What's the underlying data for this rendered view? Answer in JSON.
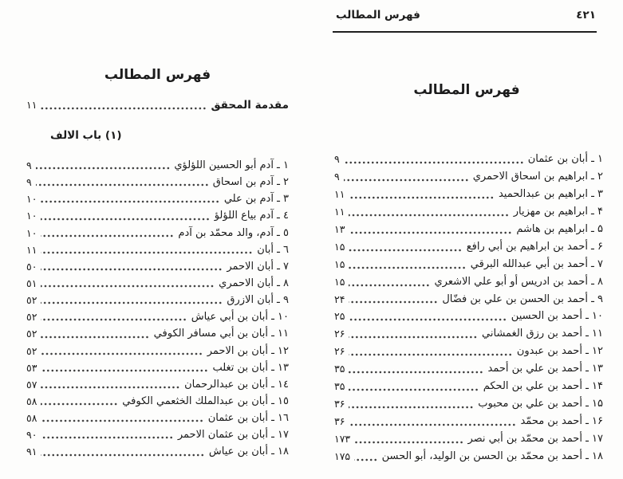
{
  "running_head": {
    "title": "فهرس المطالب",
    "page_number": "٤٢١"
  },
  "left_page": {
    "title": "فهرس المطالب",
    "intro": {
      "label": "مقدمة المحقق",
      "page": "١١"
    },
    "section_heading": "(١) باب الالف",
    "entries": [
      {
        "label": "١ ـ آدم أبو الحسين اللؤلؤي",
        "page": "٩"
      },
      {
        "label": "٢ ـ آدم بن اسحاق",
        "page": "٩"
      },
      {
        "label": "٣ ـ آدم بن علي",
        "page": "١٠"
      },
      {
        "label": "٤ ـ آدم بياع اللؤلؤ",
        "page": "١٠"
      },
      {
        "label": "٥ ـ آدم، والد محمّد بن آدم",
        "page": "١٠"
      },
      {
        "label": "٦ ـ أبان",
        "page": "١١"
      },
      {
        "label": "٧ ـ أبان الاحمر",
        "page": "٥٠"
      },
      {
        "label": "٨ ـ أبان الاحمري",
        "page": "٥١"
      },
      {
        "label": "٩ ـ أبان الازرق",
        "page": "٥٢"
      },
      {
        "label": "١٠ ـ أبان بن أبي عياش",
        "page": "٥٢"
      },
      {
        "label": "١١ ـ أبان بن أبي مسافر الكوفي",
        "page": "٥٢"
      },
      {
        "label": "١٢ ـ أبان بن الاحمر",
        "page": "٥٢"
      },
      {
        "label": "١٣ ـ أبان بن تغلب",
        "page": "٥٣"
      },
      {
        "label": "١٤ ـ أبان بن عبدالرحمان",
        "page": "٥٧"
      },
      {
        "label": "١٥ ـ أبان بن عبدالملك الخثعمي الكوفي",
        "page": "٥٨"
      },
      {
        "label": "١٦ ـ أبان بن عثمان",
        "page": "٥٨"
      },
      {
        "label": "١٧ ـ أبان بن عثمان الاحمر",
        "page": "٩٠"
      },
      {
        "label": "١٨ ـ أبان بن عياش",
        "page": "٩١"
      }
    ]
  },
  "right_page": {
    "title": "فهرس المطالب",
    "entries": [
      {
        "label": "١ ـ أبان بن عثمان",
        "page": "٩"
      },
      {
        "label": "٢ ـ ابراهيم بن اسحاق الاحمري",
        "page": "٩"
      },
      {
        "label": "٣ ـ ابراهيم بن عبدالحميد",
        "page": "١١"
      },
      {
        "label": "۴ ـ ابراهيم بن مهزيار",
        "page": "١١"
      },
      {
        "label": "۵ ـ ابراهيم بن هاشم",
        "page": "١٣"
      },
      {
        "label": "۶ ـ أحمد بن ابراهيم بن أبي رافع",
        "page": "١۵"
      },
      {
        "label": "٧ ـ أحمد بن أبي عبدالله البرقي",
        "page": "١۵"
      },
      {
        "label": "٨ ـ أحمد بن ادريس أو أبو علي الاشعري",
        "page": "١۵"
      },
      {
        "label": "٩ ـ أحمد بن الحسن بن علي بن فضّال",
        "page": "٢۴"
      },
      {
        "label": "١٠ ـ أحمد بن الحسين",
        "page": "٢۵"
      },
      {
        "label": "١١ ـ أحمد بن رزق الغمشاني",
        "page": "٢۶"
      },
      {
        "label": "١٢ ـ أحمد بن عبدون",
        "page": "٢۶"
      },
      {
        "label": "١٣ ـ أحمد بن علي بن أحمد",
        "page": "٣۵"
      },
      {
        "label": "١۴ ـ أحمد بن علي بن الحكم",
        "page": "٣۵"
      },
      {
        "label": "١۵ ـ أحمد بن علي بن محبوب",
        "page": "٣۶"
      },
      {
        "label": "١۶ ـ أحمد بن محمّد",
        "page": "٣۶"
      },
      {
        "label": "١٧ ـ أحمد بن محمّد بن أبي نصر",
        "page": "١٧٣"
      },
      {
        "label": "١٨ ـ أحمد بن محمّد بن الحسن بن الوليد، أبو الحسن",
        "page": "١٧۵"
      }
    ]
  }
}
